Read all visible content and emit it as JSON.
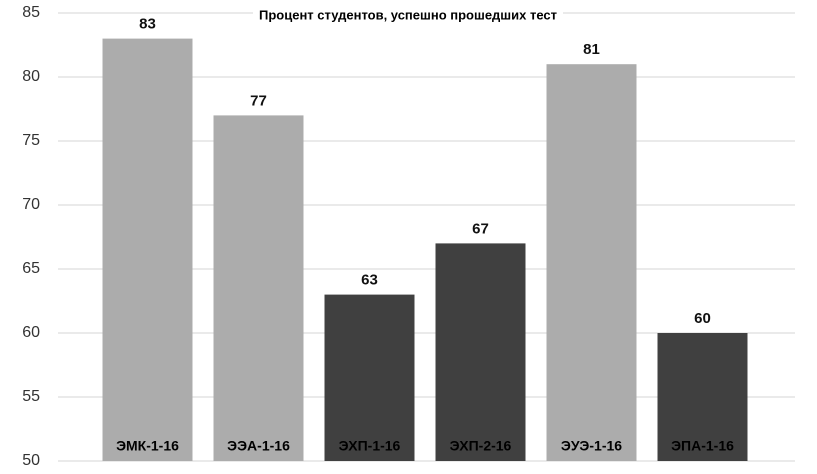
{
  "chart_data": {
    "type": "bar",
    "title": "Процент студентов, успешно прошедших тест",
    "categories": [
      "ЭМК-1-16",
      "ЭЭА-1-16",
      "ЭХП-1-16",
      "ЭХП-2-16",
      "ЭУЭ-1-16",
      "ЭПА-1-16"
    ],
    "values": [
      83,
      77,
      63,
      67,
      81,
      60
    ],
    "colors": [
      "#acacac",
      "#acacac",
      "#404040",
      "#404040",
      "#acacac",
      "#404040"
    ],
    "ylim": [
      50,
      85
    ],
    "yticks": [
      50,
      55,
      60,
      65,
      70,
      75,
      80,
      85
    ],
    "grid": true
  }
}
